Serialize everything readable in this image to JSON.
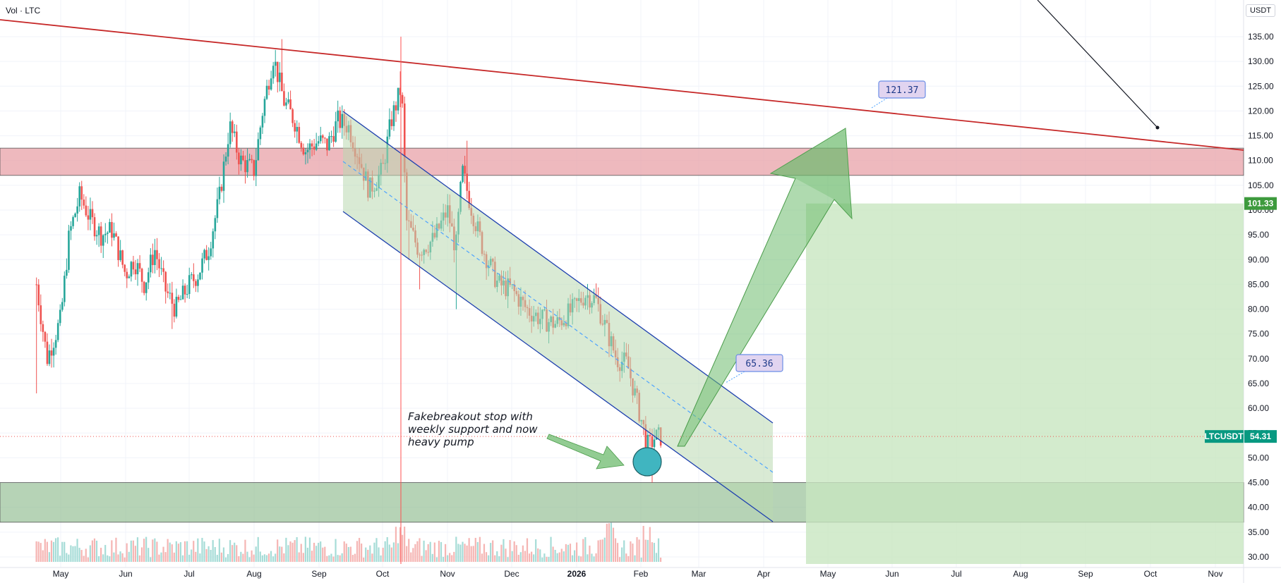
{
  "header": {
    "indicator_label": "Vol · LTC",
    "currency_label": "USDT"
  },
  "colors": {
    "up_candle": "#26a69a",
    "down_candle": "#ef5350",
    "red_zone": "#e8a2a8",
    "green_zone": "#8fbc8f",
    "target_box": "#c8e6c0",
    "channel": "#1e40af",
    "trend_line": "#c62828",
    "arrow": "#6dbb6d"
  },
  "chart_data": {
    "type": "candlestick",
    "symbol": "LTCUSDT",
    "y_range": [
      28,
      139
    ],
    "y_ticks": [
      "135.00",
      "130.00",
      "125.00",
      "120.00",
      "115.00",
      "110.00",
      "105.00",
      "100.00",
      "95.00",
      "90.00",
      "85.00",
      "80.00",
      "75.00",
      "70.00",
      "65.00",
      "60.00",
      "55.00",
      "50.00",
      "45.00",
      "40.00",
      "35.00",
      "30.00"
    ],
    "x_ticks": [
      "May",
      "Jun",
      "Jul",
      "Aug",
      "Sep",
      "Oct",
      "Nov",
      "Dec",
      "2026",
      "Feb",
      "Mar",
      "Apr",
      "May",
      "Jun",
      "Jul",
      "Aug",
      "Sep",
      "Oct",
      "Nov"
    ],
    "close_path": [
      [
        "Apr 20",
        85
      ],
      [
        "Apr 25",
        70
      ],
      [
        "May 1",
        78
      ],
      [
        "May 5",
        95
      ],
      [
        "May 10",
        103
      ],
      [
        "May 15",
        98
      ],
      [
        "May 20",
        95
      ],
      [
        "May 25",
        96
      ],
      [
        "Jun 1",
        87
      ],
      [
        "Jun 5",
        90
      ],
      [
        "Jun 10",
        85
      ],
      [
        "Jun 15",
        92
      ],
      [
        "Jun 20",
        84
      ],
      [
        "Jun 25",
        80
      ],
      [
        "Jul 1",
        85
      ],
      [
        "Jul 5",
        87
      ],
      [
        "Jul 10",
        92
      ],
      [
        "Jul 15",
        102
      ],
      [
        "Jul 20",
        117
      ],
      [
        "Jul 25",
        110
      ],
      [
        "Aug 1",
        108
      ],
      [
        "Aug 5",
        120
      ],
      [
        "Aug 10",
        131
      ],
      [
        "Aug 15",
        122
      ],
      [
        "Aug 20",
        118
      ],
      [
        "Aug 25",
        112
      ],
      [
        "Sep 1",
        114
      ],
      [
        "Sep 5",
        113
      ],
      [
        "Sep 10",
        118
      ],
      [
        "Sep 15",
        117
      ],
      [
        "Sep 20",
        111
      ],
      [
        "Sep 25",
        104
      ],
      [
        "Oct 1",
        108
      ],
      [
        "Oct 5",
        118
      ],
      [
        "Oct 10",
        125
      ],
      [
        "Oct 12",
        98
      ],
      [
        "Oct 18",
        92
      ],
      [
        "Oct 25",
        94
      ],
      [
        "Nov 1",
        100
      ],
      [
        "Nov 5",
        92
      ],
      [
        "Nov 8",
        108
      ],
      [
        "Nov 12",
        101
      ],
      [
        "Nov 18",
        92
      ],
      [
        "Nov 25",
        85
      ],
      [
        "Dec 1",
        84
      ],
      [
        "Dec 8",
        80
      ],
      [
        "Dec 15",
        78
      ],
      [
        "Dec 22",
        77
      ],
      [
        "Dec 30",
        80
      ],
      [
        "Jan 5",
        83
      ],
      [
        "Jan 10",
        82
      ],
      [
        "Jan 15",
        76
      ],
      [
        "Jan 20",
        70
      ],
      [
        "Jan 25",
        69
      ],
      [
        "Feb 1",
        58
      ],
      [
        "Feb 5",
        52
      ],
      [
        "Feb 8",
        54
      ],
      [
        "Feb 12",
        54.3
      ]
    ],
    "current_price": {
      "symbol": "LTCUSDT",
      "value": "54.31"
    },
    "target_price": {
      "value": "101.33"
    },
    "resistance_zone": [
      107,
      112.5
    ],
    "support_zone": [
      37,
      45
    ],
    "callouts": [
      {
        "label": "121.37"
      },
      {
        "label": "65.36"
      }
    ],
    "annotation": [
      "Fakebreakout stop with",
      "weekly support and now",
      "heavy pump"
    ]
  }
}
